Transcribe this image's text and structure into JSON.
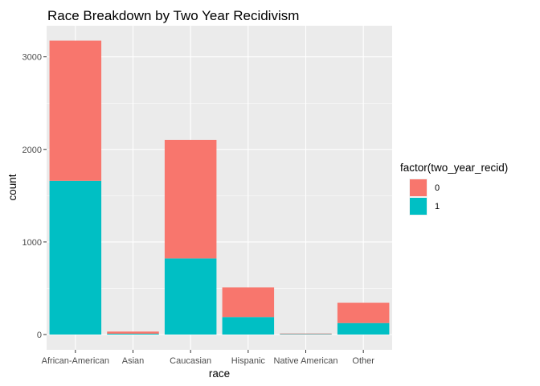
{
  "chart_data": {
    "type": "bar",
    "stacked": true,
    "title": "Race Breakdown by Two Year Recidivism",
    "xlabel": "race",
    "ylabel": "count",
    "categories": [
      "African-American",
      "Asian",
      "Caucasian",
      "Hispanic",
      "Native American",
      "Other"
    ],
    "series": [
      {
        "name": "0",
        "color": "#F8766D",
        "values": [
          1514,
          23,
          1281,
          320,
          6,
          219
        ]
      },
      {
        "name": "1",
        "color": "#00BFC4",
        "values": [
          1661,
          9,
          822,
          189,
          5,
          124
        ]
      }
    ],
    "ylim": [
      0,
      3336
    ],
    "yticks": [
      0,
      1000,
      2000,
      3000
    ],
    "ytick_labels": [
      "0",
      "1000",
      "2000",
      "3000"
    ],
    "legend": {
      "title": "factor(two_year_recid)",
      "position": "right",
      "entries": [
        "0",
        "1"
      ]
    },
    "grid": true,
    "panel_background": "#EBEBEB"
  }
}
